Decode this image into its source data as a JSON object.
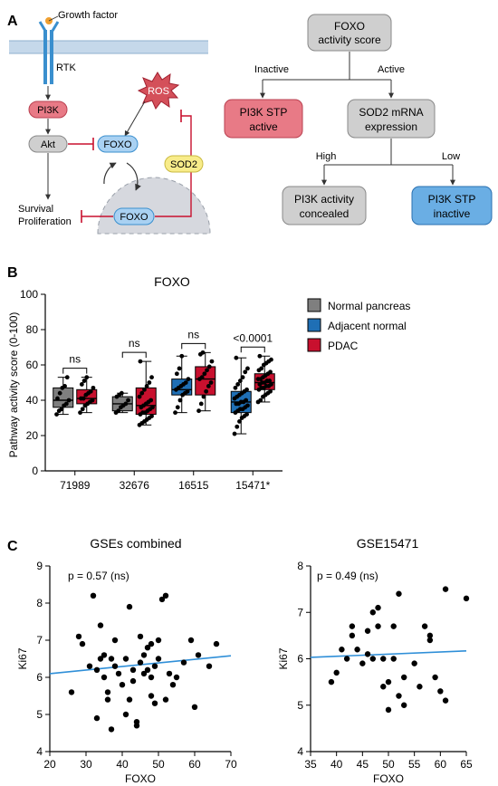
{
  "panel_a": {
    "label": "A",
    "schematic": {
      "growth_factor": "Growth factor",
      "rtk": "RTK",
      "pi3k": "PI3K",
      "akt": "Akt",
      "ros": "ROS",
      "foxo_cyto": "FOXO",
      "foxo_nuc": "FOXO",
      "sod2": "SOD2",
      "outcome_line1": "Survival",
      "outcome_line2": "Proliferation"
    },
    "tree": {
      "root_line1": "FOXO",
      "root_line2": "activity score",
      "inactive": "Inactive",
      "active": "Active",
      "stp_active_line1": "PI3K STP",
      "stp_active_line2": "active",
      "sod2_line1": "SOD2 mRNA",
      "sod2_line2": "expression",
      "high": "High",
      "low": "Low",
      "concealed_line1": "PI3K activity",
      "concealed_line2": "concealed",
      "stp_inactive_line1": "PI3K STP",
      "stp_inactive_line2": "inactive"
    },
    "colors": {
      "red": "#d9606e",
      "blue": "#3a8fce",
      "gray": "#bfbfbf",
      "yellow": "#f8ec8a",
      "ros": "#d4505a"
    }
  },
  "panel_b": {
    "label": "B",
    "chart_data": {
      "type": "box",
      "title": "FOXO",
      "ylabel": "Pathway activity score (0-100)",
      "ylim": [
        0,
        100
      ],
      "yticks": [
        0,
        20,
        40,
        60,
        80,
        100
      ],
      "categories": [
        "71989",
        "32676",
        "16515",
        "15471*"
      ],
      "legend": [
        "Normal pancreas",
        "Adjacent normal",
        "PDAC"
      ],
      "significance": [
        "ns",
        "ns",
        "ns",
        "<0.0001"
      ],
      "boxes": [
        {
          "category": "71989",
          "group": "Normal pancreas",
          "color": "#7f7f7f",
          "min": 32,
          "q1": 36,
          "median": 40,
          "q3": 47,
          "max": 53,
          "points": [
            32,
            34,
            35,
            37,
            38,
            40,
            41,
            44,
            47,
            48,
            53
          ]
        },
        {
          "category": "71989",
          "group": "PDAC",
          "color": "#c8102e",
          "min": 33,
          "q1": 38,
          "median": 41,
          "q3": 46,
          "max": 53,
          "points": [
            33,
            35,
            37,
            38,
            39,
            40,
            41,
            41,
            43,
            44,
            45,
            47,
            49,
            51,
            53
          ]
        },
        {
          "category": "32676",
          "group": "Normal pancreas",
          "color": "#7f7f7f",
          "min": 33,
          "q1": 34,
          "median": 38,
          "q3": 42,
          "max": 44,
          "points": [
            33,
            34,
            36,
            37,
            38,
            40,
            42,
            43,
            44
          ]
        },
        {
          "category": "32676",
          "group": "PDAC",
          "color": "#c8102e",
          "min": 26,
          "q1": 32,
          "median": 37,
          "q3": 47,
          "max": 62,
          "points": [
            26,
            27,
            28,
            29,
            30,
            31,
            32,
            33,
            33,
            34,
            35,
            36,
            36,
            37,
            38,
            39,
            40,
            42,
            44,
            46,
            48,
            50,
            53,
            62
          ]
        },
        {
          "category": "16515",
          "group": "Adjacent normal",
          "color": "#1f6fb5",
          "min": 33,
          "q1": 43,
          "median": 46,
          "q3": 52,
          "max": 65,
          "points": [
            33,
            36,
            40,
            43,
            44,
            45,
            46,
            47,
            48,
            49,
            50,
            52,
            55,
            58,
            65
          ]
        },
        {
          "category": "16515",
          "group": "PDAC",
          "color": "#c8102e",
          "min": 34,
          "q1": 43,
          "median": 52,
          "q3": 59,
          "max": 67,
          "points": [
            34,
            38,
            42,
            45,
            48,
            50,
            52,
            53,
            55,
            57,
            59,
            62,
            66,
            67
          ]
        },
        {
          "category": "15471*",
          "group": "Adjacent normal",
          "color": "#1f6fb5",
          "min": 21,
          "q1": 33,
          "median": 39,
          "q3": 45,
          "max": 64,
          "points": [
            21,
            25,
            28,
            30,
            31,
            32,
            33,
            34,
            35,
            35,
            36,
            37,
            38,
            38,
            39,
            39,
            40,
            41,
            42,
            43,
            44,
            45,
            46,
            47,
            49,
            51,
            53,
            56,
            58,
            64
          ]
        },
        {
          "category": "15471*",
          "group": "PDAC",
          "color": "#c8102e",
          "min": 39,
          "q1": 46,
          "median": 50,
          "q3": 55,
          "max": 65,
          "points": [
            39,
            40,
            42,
            43,
            44,
            45,
            46,
            47,
            47,
            48,
            48,
            49,
            49,
            50,
            50,
            51,
            51,
            52,
            52,
            53,
            54,
            55,
            56,
            57,
            58,
            60,
            61,
            62,
            63,
            65
          ]
        }
      ]
    }
  },
  "panel_c": {
    "label": "C",
    "chart_data": [
      {
        "type": "scatter",
        "title": "GSEs combined",
        "annotation": "p = 0.57 (ns)",
        "xlabel": "FOXO",
        "ylabel": "Ki67",
        "xlim": [
          20,
          70
        ],
        "ylim": [
          4,
          9
        ],
        "xticks": [
          20,
          30,
          40,
          50,
          60,
          70
        ],
        "yticks": [
          4,
          5,
          6,
          7,
          8,
          9
        ],
        "fit": [
          [
            20,
            6.1
          ],
          [
            70,
            6.58
          ]
        ],
        "points": [
          [
            26,
            5.6
          ],
          [
            28,
            7.1
          ],
          [
            29,
            6.9
          ],
          [
            31,
            6.3
          ],
          [
            32,
            8.2
          ],
          [
            33,
            6.2
          ],
          [
            33,
            4.9
          ],
          [
            34,
            7.4
          ],
          [
            34,
            6.5
          ],
          [
            35,
            6.6
          ],
          [
            35,
            6.0
          ],
          [
            36,
            5.6
          ],
          [
            36,
            5.4
          ],
          [
            37,
            4.6
          ],
          [
            37,
            6.5
          ],
          [
            38,
            6.3
          ],
          [
            39,
            6.1
          ],
          [
            40,
            5.8
          ],
          [
            41,
            6.5
          ],
          [
            41,
            5.0
          ],
          [
            42,
            7.9
          ],
          [
            42,
            5.4
          ],
          [
            43,
            6.2
          ],
          [
            43,
            5.9
          ],
          [
            44,
            4.8
          ],
          [
            44,
            4.7
          ],
          [
            45,
            7.1
          ],
          [
            45,
            6.4
          ],
          [
            46,
            6.6
          ],
          [
            46,
            6.1
          ],
          [
            47,
            6.8
          ],
          [
            47,
            6.2
          ],
          [
            48,
            5.5
          ],
          [
            48,
            6.0
          ],
          [
            49,
            5.3
          ],
          [
            49,
            6.3
          ],
          [
            50,
            7.0
          ],
          [
            50,
            6.5
          ],
          [
            51,
            8.1
          ],
          [
            52,
            8.2
          ],
          [
            52,
            5.4
          ],
          [
            53,
            6.1
          ],
          [
            54,
            5.8
          ],
          [
            55,
            6.0
          ],
          [
            57,
            6.4
          ],
          [
            59,
            7.0
          ],
          [
            60,
            5.2
          ],
          [
            61,
            6.6
          ],
          [
            64,
            6.3
          ],
          [
            66,
            6.9
          ],
          [
            48,
            6.9
          ],
          [
            38,
            7.0
          ]
        ]
      },
      {
        "type": "scatter",
        "title": "GSE15471",
        "annotation": "p = 0.49 (ns)",
        "xlabel": "FOXO",
        "ylabel": "Ki67",
        "xlim": [
          35,
          65
        ],
        "ylim": [
          4,
          8
        ],
        "xticks": [
          35,
          40,
          45,
          50,
          55,
          60,
          65
        ],
        "yticks": [
          4,
          5,
          6,
          7,
          8
        ],
        "fit": [
          [
            35,
            6.03
          ],
          [
            65,
            6.17
          ]
        ],
        "points": [
          [
            39,
            5.5
          ],
          [
            40,
            5.7
          ],
          [
            41,
            6.2
          ],
          [
            42,
            6.0
          ],
          [
            43,
            6.7
          ],
          [
            43,
            6.5
          ],
          [
            44,
            6.2
          ],
          [
            45,
            5.9
          ],
          [
            46,
            6.1
          ],
          [
            47,
            7.0
          ],
          [
            47,
            6.0
          ],
          [
            48,
            6.7
          ],
          [
            48,
            7.1
          ],
          [
            49,
            5.4
          ],
          [
            49,
            6.0
          ],
          [
            50,
            5.5
          ],
          [
            50,
            4.9
          ],
          [
            51,
            6.7
          ],
          [
            51,
            6.0
          ],
          [
            52,
            7.4
          ],
          [
            52,
            5.2
          ],
          [
            53,
            5.6
          ],
          [
            53,
            5.0
          ],
          [
            55,
            5.9
          ],
          [
            56,
            5.4
          ],
          [
            57,
            6.7
          ],
          [
            58,
            6.4
          ],
          [
            58,
            6.5
          ],
          [
            59,
            5.6
          ],
          [
            60,
            5.3
          ],
          [
            61,
            7.5
          ],
          [
            61,
            5.1
          ],
          [
            65,
            7.3
          ],
          [
            46,
            6.6
          ]
        ]
      }
    ]
  }
}
